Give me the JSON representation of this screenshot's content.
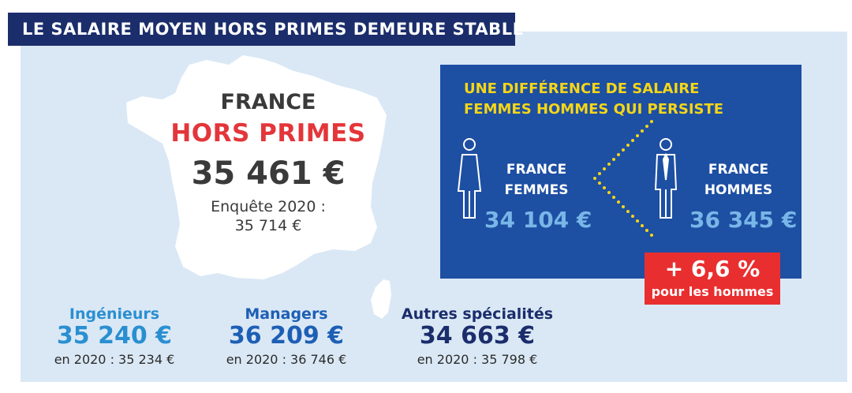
{
  "title": "LE SALAIRE MOYEN HORS PRIMES DEMEURE STABLE",
  "france": {
    "label": "FRANCE",
    "subtitle": "HORS PRIMES",
    "value": "35 461 €",
    "survey_label": "Enquête 2020 :",
    "survey_value": "35 714 €"
  },
  "gender_gap": {
    "title_line1": "UNE DIFFÉRENCE DE SALAIRE",
    "title_line2": "FEMMES HOMMES QUI PERSISTE",
    "women": {
      "line1": "FRANCE",
      "line2": "FEMMES",
      "value": "34 104 €"
    },
    "men": {
      "line1": "FRANCE",
      "line2": "HOMMES",
      "value": "36 345 €"
    },
    "difference": {
      "value": "+ 6,6 %",
      "label": "pour les hommes"
    }
  },
  "categories": [
    {
      "name": "Ingénieurs",
      "value": "35 240 €",
      "previous": "en 2020 : 35 234 €"
    },
    {
      "name": "Managers",
      "value": "36 209 €",
      "previous": "en 2020 : 36 746 €"
    },
    {
      "name": "Autres spécialités",
      "value": "34 663 €",
      "previous": "en 2020 : 35 798 €"
    }
  ],
  "colors": {
    "navy": "#1b2d6b",
    "panel": "#dae8f5",
    "red": "#e3363a",
    "box_blue": "#1d4fa3",
    "yellow": "#f5d617",
    "light_blue": "#79b6e8",
    "cat_ingenieurs": "#2a8fd1",
    "cat_managers": "#1d5fb5",
    "cat_autres": "#1b2d6b"
  },
  "icons": [
    "france-map-icon",
    "woman-icon",
    "man-icon"
  ]
}
